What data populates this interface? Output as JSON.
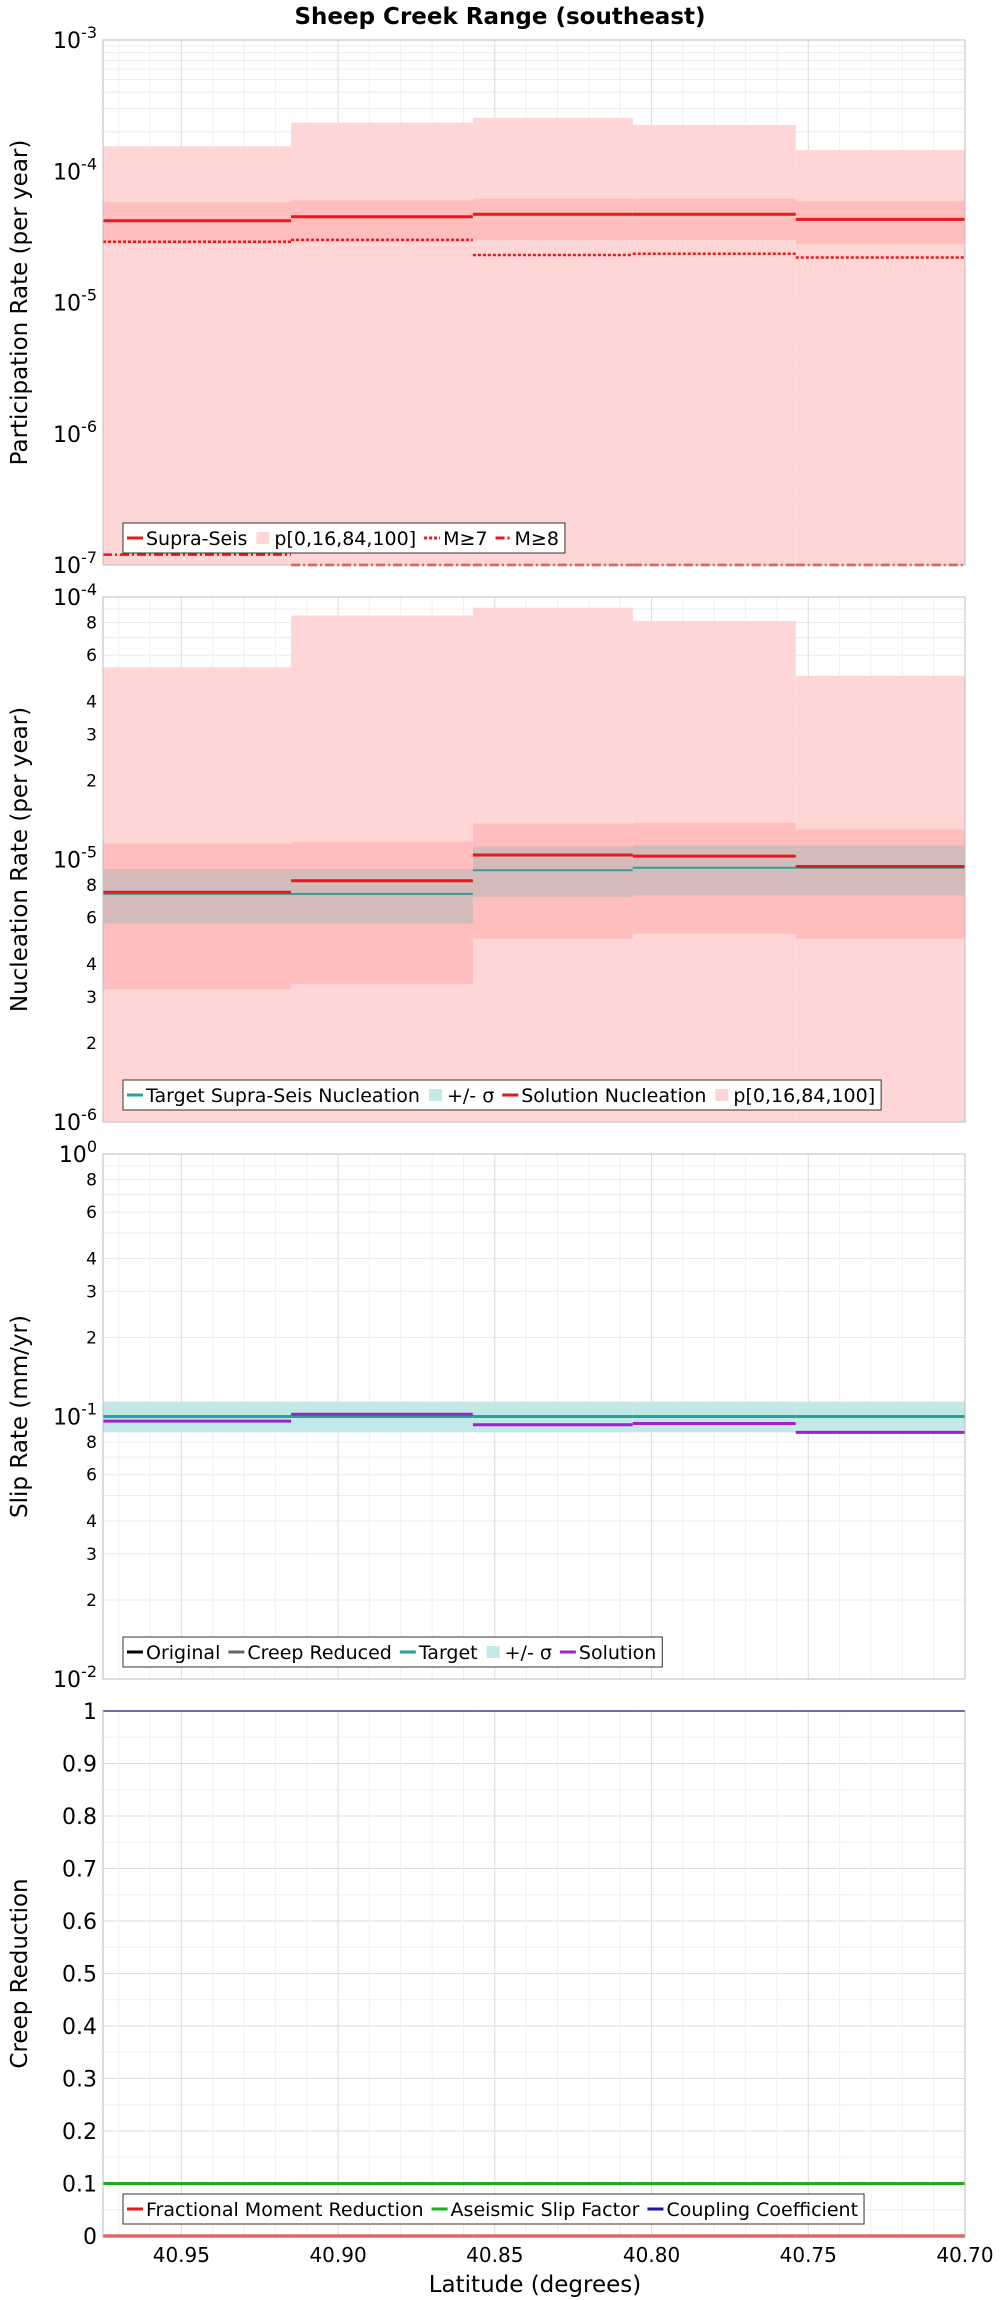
{
  "title": "Sheep Creek Range (southeast)",
  "xlabel": "Latitude (degrees)",
  "colors": {
    "supra": "#e41a1c",
    "band_light": "#ffd6d6",
    "band_mid": "#ffbdbd",
    "target": "#2aa198",
    "sigma": "#c3e8e8",
    "solution": "#a020d0",
    "gray_sigma": "#b8b8b8",
    "green": "#1fae1f",
    "blue": "#1a1a9e",
    "original": "#000000",
    "creep": "#666666"
  },
  "chart_data": [
    {
      "type": "line",
      "name": "participation",
      "ylabel": "Participation Rate (per year)",
      "yscale": "log",
      "ylim": [
        1e-07,
        0.001
      ],
      "xlim": [
        40.975,
        40.7
      ],
      "x_reversed": true,
      "xticks": [
        40.95,
        40.9,
        40.85,
        40.8,
        40.75,
        40.7
      ],
      "yticks": [
        {
          "v": 1e-07,
          "base": "10",
          "exp": "-7"
        },
        {
          "v": 1e-06,
          "base": "10",
          "exp": "-6"
        },
        {
          "v": 1e-05,
          "base": "10",
          "exp": "-5"
        },
        {
          "v": 0.0001,
          "base": "10",
          "exp": "-4"
        },
        {
          "v": 0.001,
          "base": "10",
          "exp": "-3"
        }
      ],
      "x_edges": [
        40.975,
        40.915,
        40.857,
        40.806,
        40.754,
        40.7
      ],
      "bands": [
        {
          "name": "p[0,16,84,100]",
          "low": [
            1e-07,
            1e-07,
            1e-07,
            1e-07,
            1e-07
          ],
          "high": [
            0.000155,
            0.000235,
            0.000255,
            0.000225,
            0.000145
          ],
          "color": "band_light"
        },
        {
          "name": "p16-84",
          "low": [
            2.8e-05,
            2.9e-05,
            3e-05,
            3e-05,
            2.8e-05
          ],
          "high": [
            5.8e-05,
            6e-05,
            6.2e-05,
            6.2e-05,
            5.9e-05
          ],
          "color": "band_mid"
        }
      ],
      "series": [
        {
          "name": "Supra-Seis",
          "values": [
            4.2e-05,
            4.5e-05,
            4.7e-05,
            4.7e-05,
            4.3e-05
          ],
          "color": "supra",
          "width": 3,
          "dash": ""
        },
        {
          "name": "M≥7",
          "values": [
            2.9e-05,
            3e-05,
            2.3e-05,
            2.35e-05,
            2.2e-05
          ],
          "color": "supra",
          "width": 2.5,
          "dash": "3,2"
        },
        {
          "name": "M≥8",
          "values": [
            1.2e-07,
            1e-07,
            1e-07,
            1e-07,
            1e-07
          ],
          "color": "supra",
          "width": 2.5,
          "dash": "9,3,2,3"
        }
      ],
      "legend": [
        {
          "label": "Supra-Seis",
          "kind": "line",
          "color": "supra",
          "dash": ""
        },
        {
          "label": "p[0,16,84,100]",
          "kind": "box",
          "color": "band_light"
        },
        {
          "label": "M≥7",
          "kind": "line",
          "color": "supra",
          "dash": "3,2"
        },
        {
          "label": "M≥8",
          "kind": "line",
          "color": "supra",
          "dash": "9,3,2,3"
        }
      ]
    },
    {
      "type": "line",
      "name": "nucleation",
      "ylabel": "Nucleation Rate (per year)",
      "yscale": "log",
      "ylim": [
        1e-06,
        0.0001
      ],
      "xlim": [
        40.975,
        40.7
      ],
      "x_reversed": true,
      "xticks": [
        40.95,
        40.9,
        40.85,
        40.8,
        40.75,
        40.7
      ],
      "yticks": [
        {
          "v": 1e-06,
          "base": "10",
          "exp": "-6"
        },
        {
          "v": 2e-06,
          "base": "2"
        },
        {
          "v": 3e-06,
          "base": "3"
        },
        {
          "v": 4e-06,
          "base": "4"
        },
        {
          "v": 6e-06,
          "base": "6"
        },
        {
          "v": 8e-06,
          "base": "8"
        },
        {
          "v": 1e-05,
          "base": "10",
          "exp": "-5"
        },
        {
          "v": 2e-05,
          "base": "2"
        },
        {
          "v": 3e-05,
          "base": "3"
        },
        {
          "v": 4e-05,
          "base": "4"
        },
        {
          "v": 6e-05,
          "base": "6"
        },
        {
          "v": 8e-05,
          "base": "8"
        },
        {
          "v": 0.0001,
          "base": "10",
          "exp": "-4"
        }
      ],
      "x_edges": [
        40.975,
        40.915,
        40.857,
        40.806,
        40.754,
        40.7
      ],
      "bands": [
        {
          "name": "p[0,16,84,100]",
          "low": [
            1e-06,
            1e-06,
            1e-06,
            1e-06,
            1e-06
          ],
          "high": [
            5.4e-05,
            8.5e-05,
            9.1e-05,
            8.1e-05,
            5e-05
          ],
          "color": "band_light"
        },
        {
          "name": "p16-84",
          "low": [
            3.2e-06,
            3.35e-06,
            5e-06,
            5.2e-06,
            5e-06
          ],
          "high": [
            1.15e-05,
            1.17e-05,
            1.37e-05,
            1.38e-05,
            1.3e-05
          ],
          "color": "band_mid"
        },
        {
          "name": "+/- σ",
          "low": [
            5.7e-06,
            5.7e-06,
            7.2e-06,
            7.3e-06,
            7.3e-06
          ],
          "high": [
            9.2e-06,
            9.2e-06,
            1.12e-05,
            1.13e-05,
            1.13e-05
          ],
          "color": "gray_sigma",
          "opacity": 0.6
        }
      ],
      "series": [
        {
          "name": "Target Supra-Seis Nucleation",
          "values": [
            7.4e-06,
            7.4e-06,
            9.1e-06,
            9.3e-06,
            9.3e-06
          ],
          "color": "target",
          "width": 2,
          "dash": ""
        },
        {
          "name": "Solution Nucleation",
          "values": [
            7.5e-06,
            8.3e-06,
            1.04e-05,
            1.03e-05,
            9.4e-06
          ],
          "color": "supra",
          "width": 3,
          "dash": ""
        }
      ],
      "legend": [
        {
          "label": "Target Supra-Seis Nucleation",
          "kind": "line",
          "color": "target",
          "dash": ""
        },
        {
          "label": "+/- σ",
          "kind": "box",
          "color": "sigma"
        },
        {
          "label": "Solution Nucleation",
          "kind": "line",
          "color": "supra",
          "dash": ""
        },
        {
          "label": "p[0,16,84,100]",
          "kind": "box",
          "color": "band_light"
        }
      ]
    },
    {
      "type": "line",
      "name": "slip",
      "ylabel": "Slip Rate (mm/yr)",
      "yscale": "log",
      "ylim": [
        0.01,
        1
      ],
      "xlim": [
        40.975,
        40.7
      ],
      "x_reversed": true,
      "xticks": [
        40.95,
        40.9,
        40.85,
        40.8,
        40.75,
        40.7
      ],
      "yticks": [
        {
          "v": 0.01,
          "base": "10",
          "exp": "-2"
        },
        {
          "v": 0.02,
          "base": "2"
        },
        {
          "v": 0.03,
          "base": "3"
        },
        {
          "v": 0.04,
          "base": "4"
        },
        {
          "v": 0.06,
          "base": "6"
        },
        {
          "v": 0.08,
          "base": "8"
        },
        {
          "v": 0.1,
          "base": "10",
          "exp": "-1"
        },
        {
          "v": 0.2,
          "base": "2"
        },
        {
          "v": 0.3,
          "base": "3"
        },
        {
          "v": 0.4,
          "base": "4"
        },
        {
          "v": 0.6,
          "base": "6"
        },
        {
          "v": 0.8,
          "base": "8"
        },
        {
          "v": 1,
          "base": "10",
          "exp": "0"
        }
      ],
      "x_edges": [
        40.975,
        40.915,
        40.857,
        40.806,
        40.754,
        40.7
      ],
      "bands": [
        {
          "name": "+/- σ",
          "low": [
            0.087,
            0.087,
            0.087,
            0.087,
            0.087
          ],
          "high": [
            0.114,
            0.114,
            0.114,
            0.114,
            0.114
          ],
          "color": "sigma"
        }
      ],
      "series": [
        {
          "name": "Target",
          "values": [
            0.1,
            0.1,
            0.1,
            0.1,
            0.1
          ],
          "color": "target",
          "width": 3,
          "dash": ""
        },
        {
          "name": "Solution",
          "values": [
            0.096,
            0.102,
            0.093,
            0.094,
            0.087
          ],
          "color": "solution",
          "width": 3,
          "dash": ""
        }
      ],
      "legend": [
        {
          "label": "Original",
          "kind": "line",
          "color": "original",
          "dash": ""
        },
        {
          "label": "Creep Reduced",
          "kind": "line",
          "color": "creep",
          "dash": ""
        },
        {
          "label": "Target",
          "kind": "line",
          "color": "target",
          "dash": ""
        },
        {
          "label": "+/- σ",
          "kind": "box",
          "color": "sigma"
        },
        {
          "label": "Solution",
          "kind": "line",
          "color": "solution",
          "dash": ""
        }
      ]
    },
    {
      "type": "line",
      "name": "creep",
      "ylabel": "Creep Reduction",
      "yscale": "linear",
      "ylim": [
        0,
        1
      ],
      "xlim": [
        40.975,
        40.7
      ],
      "x_reversed": true,
      "xticks": [
        40.95,
        40.9,
        40.85,
        40.8,
        40.75,
        40.7
      ],
      "xtick_labels": [
        "40.95",
        "40.90",
        "40.85",
        "40.80",
        "40.75",
        "40.70"
      ],
      "yticks": [
        {
          "v": 0,
          "base": "0"
        },
        {
          "v": 0.1,
          "base": "0.1"
        },
        {
          "v": 0.2,
          "base": "0.2"
        },
        {
          "v": 0.3,
          "base": "0.3"
        },
        {
          "v": 0.4,
          "base": "0.4"
        },
        {
          "v": 0.5,
          "base": "0.5"
        },
        {
          "v": 0.6,
          "base": "0.6"
        },
        {
          "v": 0.7,
          "base": "0.7"
        },
        {
          "v": 0.8,
          "base": "0.8"
        },
        {
          "v": 0.9,
          "base": "0.9"
        },
        {
          "v": 1,
          "base": "1"
        }
      ],
      "x_edges": [
        40.975,
        40.915,
        40.857,
        40.806,
        40.754,
        40.7
      ],
      "bands": [],
      "series": [
        {
          "name": "Fractional Moment Reduction",
          "values": [
            0,
            0,
            0,
            0,
            0
          ],
          "color": "supra",
          "width": 3,
          "dash": ""
        },
        {
          "name": "Aseismic Slip Factor",
          "values": [
            0.1,
            0.1,
            0.1,
            0.1,
            0.1
          ],
          "color": "green",
          "width": 3,
          "dash": ""
        },
        {
          "name": "Coupling Coefficient",
          "values": [
            1,
            1,
            1,
            1,
            1
          ],
          "color": "blue",
          "width": 2,
          "dash": ""
        }
      ],
      "legend": [
        {
          "label": "Fractional Moment Reduction",
          "kind": "line",
          "color": "supra",
          "dash": ""
        },
        {
          "label": "Aseismic Slip Factor",
          "kind": "line",
          "color": "green",
          "dash": ""
        },
        {
          "label": "Coupling Coefficient",
          "kind": "line",
          "color": "blue",
          "dash": ""
        }
      ]
    }
  ]
}
